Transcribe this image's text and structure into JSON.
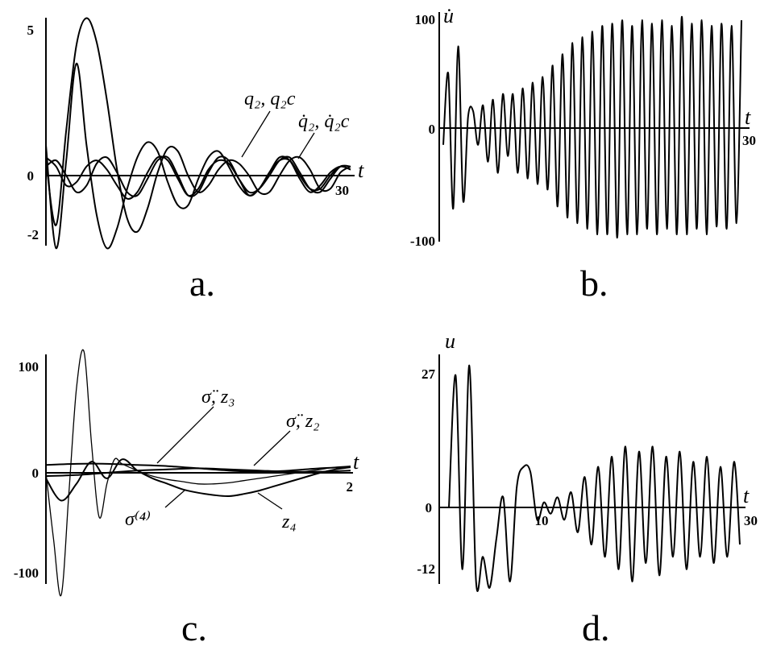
{
  "chart_data": [
    {
      "panel": "a.",
      "type": "line",
      "xlabel": "t",
      "ylabel": "",
      "xlim": [
        0,
        30
      ],
      "ylim": [
        -2,
        5
      ],
      "x_ticks": [
        "30"
      ],
      "y_ticks": [
        "5",
        "0",
        "-2"
      ],
      "annotations": [
        "q₂, q₂c",
        "q̇₂, q̇₂c"
      ],
      "series": [
        {
          "x": [
            0,
            1,
            2,
            3,
            4,
            5,
            6,
            7,
            8,
            9,
            10,
            11,
            12,
            13,
            14,
            15,
            16,
            17,
            18,
            19,
            20,
            21,
            22,
            23,
            24,
            25,
            26,
            27,
            28,
            29,
            30
          ],
          "values": [
            0.5,
            -1.5,
            1.5,
            4.3,
            5.2,
            4.4,
            2.5,
            0.2,
            -1.3,
            -1.7,
            -1.0,
            0.1,
            0.9,
            0.8,
            0.0,
            -0.5,
            -0.3,
            0.2,
            0.5,
            0.4,
            0.0,
            -0.5,
            -0.5,
            0.0,
            0.5,
            0.6,
            0.2,
            -0.4,
            -0.4,
            0.1,
            0.3
          ]
        },
        {
          "x": [
            0,
            1,
            2,
            3,
            4,
            5,
            6,
            7,
            8,
            9,
            10,
            11,
            12,
            13,
            14,
            15,
            16,
            17,
            18,
            19,
            20,
            21,
            22,
            23,
            24,
            25,
            26,
            27,
            28,
            29,
            30
          ],
          "values": [
            1.0,
            -2.2,
            0.5,
            3.7,
            1.0,
            -1.2,
            -2.2,
            -1.6,
            -0.4,
            0.6,
            1.1,
            0.8,
            -0.2,
            -0.9,
            -0.9,
            -0.1,
            0.6,
            0.8,
            0.3,
            -0.3,
            -0.6,
            -0.4,
            0.1,
            0.5,
            0.5,
            0.0,
            -0.4,
            -0.4,
            0.0,
            0.3,
            0.2
          ]
        },
        {
          "x": [
            0,
            1,
            2,
            3,
            4,
            5,
            6,
            7,
            8,
            9,
            10,
            11,
            12,
            13,
            14,
            15,
            16,
            17,
            18,
            19,
            20,
            21,
            22,
            23,
            24,
            25,
            26,
            27,
            28,
            29,
            30
          ],
          "values": [
            0.6,
            0.3,
            -0.3,
            -0.2,
            0.3,
            0.5,
            0.2,
            -0.3,
            -0.7,
            -0.5,
            0.1,
            0.6,
            0.5,
            -0.1,
            -0.6,
            -0.4,
            0.2,
            0.5,
            0.4,
            -0.1,
            -0.5,
            -0.4,
            0.0,
            0.5,
            0.6,
            0.1,
            -0.4,
            -0.5,
            -0.1,
            0.3,
            0.3
          ]
        },
        {
          "x": [
            0,
            1,
            2,
            3,
            4,
            5,
            6,
            7,
            8,
            9,
            10,
            11,
            12,
            13,
            14,
            15,
            16,
            17,
            18,
            19,
            20,
            21,
            22,
            23,
            24,
            25,
            26,
            27,
            28,
            29,
            30
          ],
          "values": [
            0.3,
            0.5,
            0.0,
            -0.5,
            -0.3,
            0.4,
            0.6,
            0.1,
            -0.5,
            -0.6,
            -0.1,
            0.5,
            0.6,
            0.0,
            -0.6,
            -0.5,
            0.1,
            0.6,
            0.5,
            -0.1,
            -0.6,
            -0.4,
            0.1,
            0.6,
            0.5,
            -0.1,
            -0.5,
            -0.3,
            0.1,
            0.3,
            0.2
          ]
        }
      ]
    },
    {
      "panel": "b.",
      "type": "line",
      "xlabel": "t",
      "ylabel": "u̇",
      "xlim": [
        0,
        30
      ],
      "ylim": [
        -100,
        100
      ],
      "x_ticks": [
        "30"
      ],
      "y_ticks": [
        "100",
        "0",
        "-100"
      ],
      "series": [
        {
          "x": [
            0,
            0.5,
            1,
            1.5,
            2,
            2.5,
            3,
            3.5,
            4,
            4.5,
            5,
            5.5,
            6,
            6.5,
            7,
            7.5,
            8,
            8.5,
            9,
            9.5,
            10,
            10.5,
            11,
            11.5,
            12,
            12.5,
            13,
            13.5,
            14,
            14.5,
            15,
            15.5,
            16,
            16.5,
            17,
            17.5,
            18,
            18.5,
            19,
            19.5,
            20,
            20.5,
            21,
            21.5,
            22,
            22.5,
            23,
            23.5,
            24,
            24.5,
            25,
            25.5,
            26,
            26.5,
            27,
            27.5,
            28,
            28.5,
            29,
            29.5,
            30
          ],
          "values": [
            -15,
            48,
            -72,
            72,
            -65,
            10,
            15,
            -15,
            20,
            -30,
            25,
            -40,
            30,
            -25,
            30,
            -40,
            35,
            -45,
            40,
            -50,
            45,
            -55,
            55,
            -70,
            65,
            -80,
            75,
            -85,
            80,
            -90,
            85,
            -95,
            90,
            -95,
            92,
            -98,
            95,
            -95,
            90,
            -95,
            95,
            -90,
            92,
            -95,
            95,
            -90,
            90,
            -95,
            98,
            -95,
            92,
            -90,
            95,
            -95,
            90,
            -88,
            92,
            -90,
            90,
            -85,
            95
          ]
        }
      ]
    },
    {
      "panel": "c.",
      "type": "line",
      "xlabel": "t",
      "ylabel": "",
      "xlim": [
        0,
        2
      ],
      "ylim": [
        -100,
        100
      ],
      "x_ticks": [
        "2"
      ],
      "y_ticks": [
        "100",
        "0",
        "-100"
      ],
      "annotations": [
        "σ̈, z₃",
        "σ̈, z₂",
        "σ⁽⁴⁾",
        "z₄"
      ],
      "series": [
        {
          "x": [
            0,
            0.05,
            0.1,
            0.15,
            0.2,
            0.25,
            0.3,
            0.35,
            0.4,
            0.45,
            0.5,
            0.6,
            0.7,
            0.8,
            0.9,
            1.0,
            1.1,
            1.2,
            1.3,
            1.4,
            1.5,
            1.6,
            1.7,
            1.8,
            1.9,
            2.0
          ],
          "values": [
            0,
            -60,
            -110,
            -20,
            75,
            108,
            25,
            -40,
            -10,
            12,
            8,
            2,
            -3,
            -6,
            -8,
            -10,
            -10,
            -9,
            -7,
            -5,
            -3,
            -1,
            1,
            3,
            5,
            6
          ]
        },
        {
          "x": [
            0,
            0.1,
            0.2,
            0.3,
            0.4,
            0.5,
            0.6,
            0.7,
            0.8,
            0.9,
            1.0,
            1.1,
            1.2,
            1.3,
            1.4,
            1.5,
            1.6,
            1.7,
            1.8,
            1.9,
            2.0
          ],
          "values": [
            -5,
            -25,
            -10,
            10,
            -5,
            12,
            2,
            -5,
            -10,
            -15,
            -18,
            -20,
            -21,
            -19,
            -16,
            -12,
            -8,
            -4,
            0,
            3,
            5
          ]
        },
        {
          "x": [
            0,
            0.2,
            0.4,
            0.6,
            0.8,
            1.0,
            1.2,
            1.4,
            1.6,
            1.8,
            2.0
          ],
          "values": [
            7,
            8,
            8,
            7,
            6,
            4,
            2,
            1,
            2,
            4,
            5
          ]
        },
        {
          "x": [
            0,
            0.2,
            0.4,
            0.6,
            0.8,
            1.0,
            1.2,
            1.4,
            1.6,
            1.8,
            2.0
          ],
          "values": [
            -3,
            -2,
            0,
            2,
            3,
            4,
            3,
            2,
            1,
            1,
            2
          ]
        }
      ]
    },
    {
      "panel": "d.",
      "type": "line",
      "xlabel": "t",
      "ylabel": "u",
      "xlim": [
        0,
        30
      ],
      "ylim": [
        -12,
        27
      ],
      "x_ticks": [
        "10",
        "30"
      ],
      "y_ticks": [
        "27",
        "0",
        "-12"
      ],
      "series": [
        {
          "x": [
            0,
            0.7,
            1.4,
            2.1,
            2.8,
            3.5,
            4.2,
            4.9,
            5.6,
            6.3,
            7,
            7.7,
            8.4,
            9.1,
            9.8,
            10.5,
            11.2,
            11.9,
            12.6,
            13.3,
            14,
            14.7,
            15.4,
            16.1,
            16.8,
            17.5,
            18.2,
            18.9,
            19.6,
            20.3,
            21,
            21.7,
            22.4,
            23.1,
            23.8,
            24.5,
            25.2,
            25.9,
            26.6,
            27.3,
            28,
            28.7,
            29.4,
            30
          ],
          "values": [
            0,
            26,
            -10,
            28,
            -12,
            -8,
            -13,
            -5,
            2,
            -12,
            4,
            8,
            7,
            -2,
            1,
            -1,
            2,
            -2,
            3,
            -4,
            6,
            -6,
            8,
            -8,
            10,
            -10,
            12,
            -12,
            11,
            -9,
            12,
            -11,
            10,
            -8,
            11,
            -10,
            9,
            -8,
            10,
            -9,
            8,
            -8,
            9,
            -6
          ]
        }
      ]
    }
  ]
}
